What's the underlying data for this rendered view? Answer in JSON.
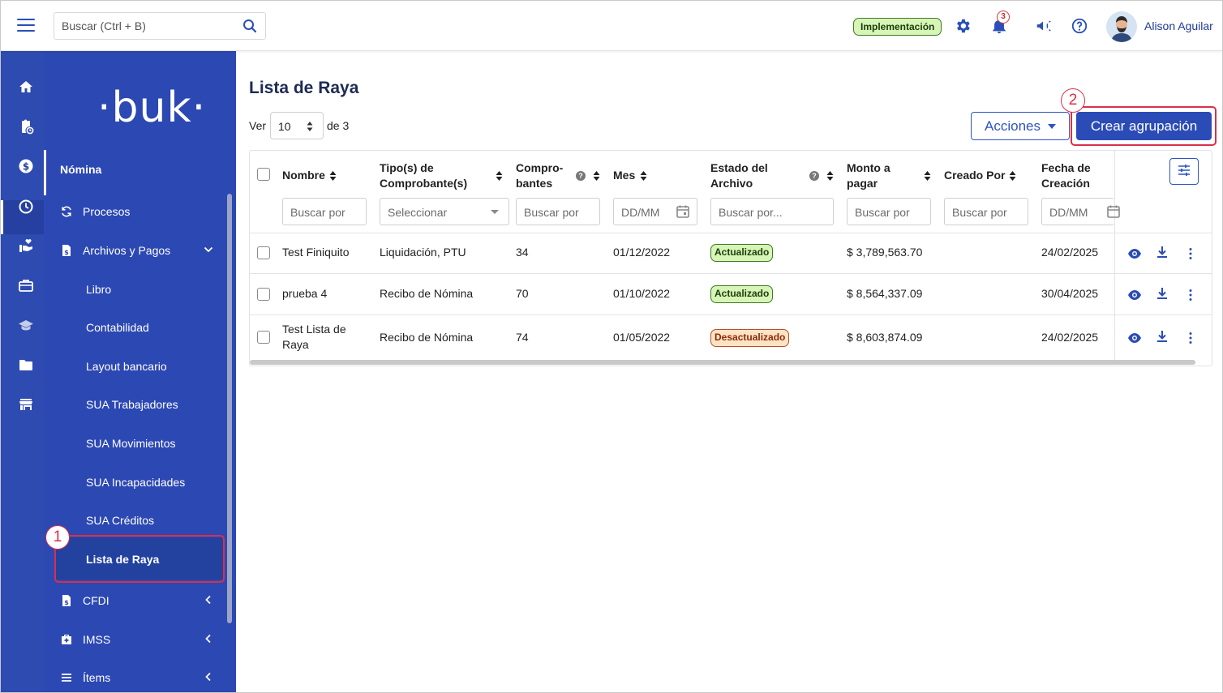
{
  "topbar": {
    "search_placeholder": "Buscar (Ctrl + B)",
    "env_badge": "Implementación",
    "notifications_count": "3",
    "user_name": "Alison Aguilar"
  },
  "sidebar": {
    "logo": "·buk·",
    "section": "Nómina",
    "items": [
      {
        "label": "Procesos"
      },
      {
        "label": "Archivos y Pagos"
      },
      {
        "label": "CFDI"
      },
      {
        "label": "IMSS"
      },
      {
        "label": "Ítems"
      }
    ],
    "subitems": [
      {
        "label": "Libro"
      },
      {
        "label": "Contabilidad"
      },
      {
        "label": "Layout bancario"
      },
      {
        "label": "SUA Trabajadores"
      },
      {
        "label": "SUA Movimientos"
      },
      {
        "label": "SUA Incapacidades"
      },
      {
        "label": "SUA Créditos"
      },
      {
        "label": "Lista de Raya"
      }
    ]
  },
  "annotations": {
    "one": "1",
    "two": "2"
  },
  "main": {
    "title": "Lista de Raya",
    "ver_label": "Ver",
    "per_page": "10",
    "de_label": "de 3",
    "acciones_label": "Acciones",
    "crear_label": "Crear agrupación"
  },
  "table": {
    "headers": [
      {
        "line1": "Nombre",
        "line2": ""
      },
      {
        "line1": "Tipo(s) de",
        "line2": "Comprobante(s)"
      },
      {
        "line1": "Compro-",
        "line2": "bantes"
      },
      {
        "line1": "Mes",
        "line2": ""
      },
      {
        "line1": "Estado del",
        "line2": "Archivo"
      },
      {
        "line1": "Monto a",
        "line2": "pagar"
      },
      {
        "line1": "Creado Por",
        "line2": ""
      },
      {
        "line1": "Fecha de",
        "line2": "Creación"
      }
    ],
    "filters": {
      "nombre": "Buscar por",
      "tipo": "Seleccionar",
      "comprobantes": "Buscar por",
      "mes": "DD/MM",
      "estado": "Buscar por...",
      "monto": "Buscar por",
      "creado": "Buscar por",
      "fecha": "DD/MM"
    },
    "rows": [
      {
        "nombre1": "Test Finiquito",
        "nombre2": "",
        "tipo": "Liquidación, PTU",
        "comprobantes": "34",
        "mes": "01/12/2022",
        "estado": "Actualizado",
        "monto": "$ 3,789,563.70",
        "creado": "",
        "fecha": "24/02/2025"
      },
      {
        "nombre1": "prueba 4",
        "nombre2": "",
        "tipo": "Recibo de Nómina",
        "comprobantes": "70",
        "mes": "01/10/2022",
        "estado": "Actualizado",
        "monto": "$ 8,564,337.09",
        "creado": "",
        "fecha": "30/04/2025"
      },
      {
        "nombre1": "Test Lista de",
        "nombre2": "Raya",
        "tipo": "Recibo de Nómina",
        "comprobantes": "74",
        "mes": "01/05/2022",
        "estado": "Desactualizado",
        "monto": "$ 8,603,874.09",
        "creado": "",
        "fecha": "24/02/2025"
      }
    ]
  },
  "colors": {
    "primary": "#2b4cb6",
    "sidebar": "#2c48b3",
    "highlight": "#d9304a"
  }
}
